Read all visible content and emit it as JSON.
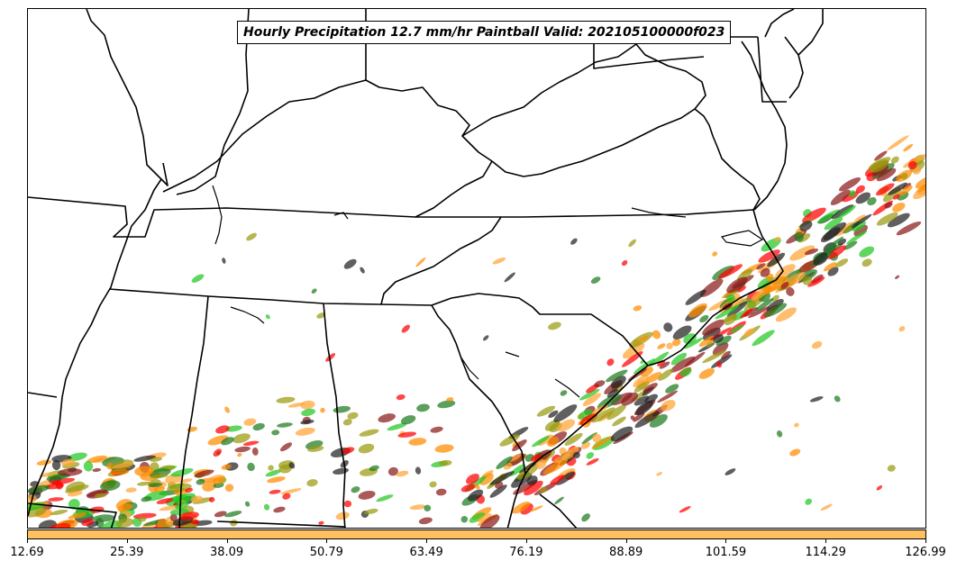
{
  "map": {
    "title": "Hourly Precipitation 12.7 mm/hr Paintball Valid: 202105100000f023",
    "member_colors": [
      "#ff0000",
      "#ff8c00",
      "#22c822",
      "#1e7a1e",
      "#8b1a1a",
      "#9a9a10",
      "#ffa534",
      "#222222"
    ],
    "background_color": "#ffffff",
    "boundary_color": "#000000"
  },
  "colorbar": {
    "color": "#ffc060",
    "ticks": [
      "12.69",
      "25.39",
      "38.09",
      "50.79",
      "63.49",
      "76.19",
      "88.89",
      "101.59",
      "114.29",
      "126.99"
    ]
  }
}
